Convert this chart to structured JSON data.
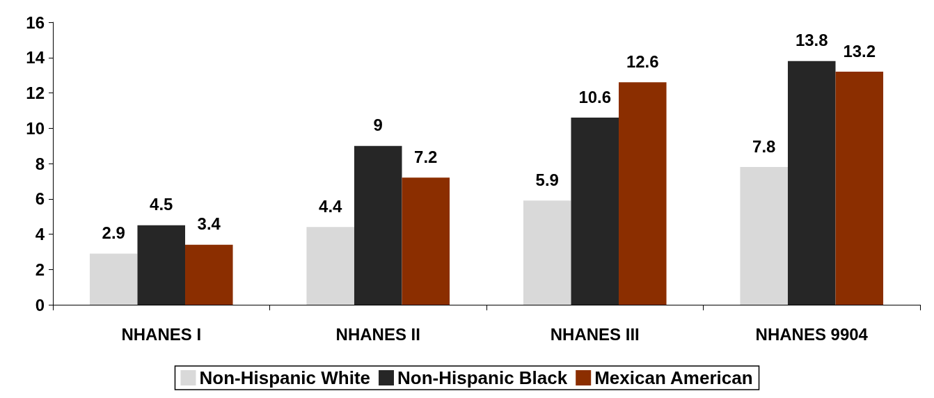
{
  "chart_data": {
    "type": "bar",
    "categories": [
      "NHANES I",
      "NHANES II",
      "NHANES III",
      "NHANES 9904"
    ],
    "series": [
      {
        "name": "Non-Hispanic White",
        "color": "#d9d9d9",
        "values": [
          2.9,
          4.4,
          5.9,
          7.8
        ]
      },
      {
        "name": "Non-Hispanic Black",
        "color": "#262626",
        "values": [
          4.5,
          9,
          10.6,
          13.8
        ]
      },
      {
        "name": "Mexican American",
        "color": "#8b2e00",
        "values": [
          3.4,
          7.2,
          12.6,
          13.2
        ]
      }
    ],
    "ylim": [
      0,
      16
    ],
    "yticks": [
      0,
      2,
      4,
      6,
      8,
      10,
      12,
      14,
      16
    ],
    "data_labels": true,
    "grid": false,
    "legend": "bottom"
  }
}
